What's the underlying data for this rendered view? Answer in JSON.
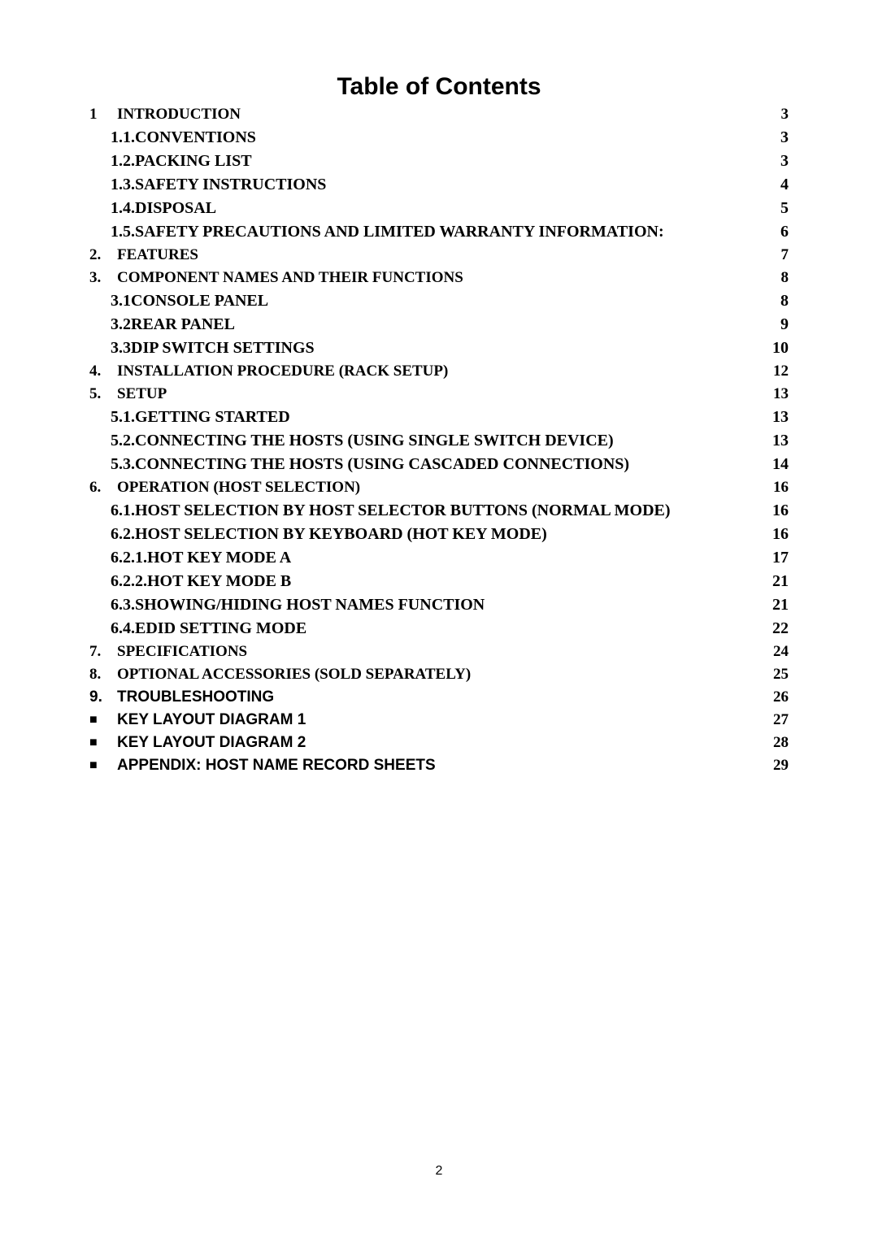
{
  "doc": {
    "title": "Table of Contents",
    "page_number": "2",
    "background_color": "#ffffff",
    "text_color": "#000000",
    "title_font": {
      "family": "Arial",
      "size_pt": 22,
      "weight": "bold"
    },
    "serif_font": {
      "family": "Times New Roman"
    },
    "sans_font": {
      "family": "Arial"
    }
  },
  "toc": [
    {
      "level": 1,
      "style": "serif",
      "num": "1",
      "label": "INTRODUCTION",
      "page": "3"
    },
    {
      "level": 2,
      "style": "serif",
      "num": "1.1.",
      "label": "CONVENTIONS",
      "page": "3"
    },
    {
      "level": 2,
      "style": "serif",
      "num": "1.2.",
      "label": "PACKING LIST",
      "page": "3"
    },
    {
      "level": 2,
      "style": "serif",
      "num": "1.3.",
      "label": "SAFETY INSTRUCTIONS",
      "page": "4"
    },
    {
      "level": 2,
      "style": "serif",
      "num": "1.4.",
      "label": "DISPOSAL",
      "page": "5"
    },
    {
      "level": 2,
      "style": "serif",
      "num": "1.5.",
      "label": "SAFETY PRECAUTIONS AND LIMITED WARRANTY INFORMATION:",
      "page": "6"
    },
    {
      "level": 1,
      "style": "serif",
      "num": "2.",
      "label": "FEATURES",
      "page": "7"
    },
    {
      "level": 1,
      "style": "serif",
      "num": "3.",
      "label": "COMPONENT NAMES AND THEIR FUNCTIONS",
      "page": "8"
    },
    {
      "level": 2,
      "style": "serif",
      "num": "3.1",
      "label": "CONSOLE PANEL",
      "page": "8"
    },
    {
      "level": 2,
      "style": "serif",
      "num": "3.2",
      "label": "REAR PANEL",
      "page": "9"
    },
    {
      "level": 2,
      "style": "serif",
      "num": "3.3",
      "label": "DIP SWITCH SETTINGS",
      "page": "10"
    },
    {
      "level": 1,
      "style": "serif",
      "num": "4.",
      "label": "INSTALLATION PROCEDURE (RACK SETUP)",
      "page": "12"
    },
    {
      "level": 1,
      "style": "serif",
      "num": "5.",
      "label": "SETUP",
      "page": "13"
    },
    {
      "level": 2,
      "style": "serif",
      "num": "5.1.",
      "label": "GETTING STARTED",
      "page": "13"
    },
    {
      "level": 2,
      "style": "serif",
      "num": "5.2.",
      "label": "CONNECTING THE HOSTS (USING SINGLE SWITCH DEVICE)",
      "page": "13"
    },
    {
      "level": 2,
      "style": "serif",
      "num": "5.3.",
      "label": "CONNECTING THE HOSTS (USING CASCADED CONNECTIONS)",
      "page": "14"
    },
    {
      "level": 1,
      "style": "serif",
      "num": "6.",
      "label": "OPERATION (HOST SELECTION)",
      "page": "16"
    },
    {
      "level": 2,
      "style": "serif",
      "num": "6.1.",
      "label": "HOST SELECTION BY HOST SELECTOR BUTTONS (NORMAL MODE)",
      "page": "16"
    },
    {
      "level": 2,
      "style": "serif",
      "num": "6.2.",
      "label": "HOST SELECTION BY KEYBOARD (HOT KEY MODE)",
      "page": "16"
    },
    {
      "level": 2,
      "style": "serif",
      "num": "6.2.1.",
      "label": "HOT KEY MODE A",
      "page": "17"
    },
    {
      "level": 2,
      "style": "serif",
      "num": "6.2.2.",
      "label": "HOT KEY MODE B",
      "page": "21"
    },
    {
      "level": 2,
      "style": "serif",
      "num": "6.3.",
      "label": "SHOWING/HIDING HOST NAMES FUNCTION",
      "page": "21"
    },
    {
      "level": 2,
      "style": "serif",
      "num": "6.4.",
      "label": "EDID SETTING MODE",
      "page": "22"
    },
    {
      "level": 1,
      "style": "serif",
      "num": "7.",
      "label": "SPECIFICATIONS",
      "page": "24"
    },
    {
      "level": 1,
      "style": "serif",
      "num": "8.",
      "label": "OPTIONAL ACCESSORIES (SOLD SEPARATELY)",
      "page": "25"
    },
    {
      "level": 1,
      "style": "sans",
      "num": "9.",
      "label": "TROUBLESHOOTING",
      "page": "26"
    },
    {
      "level": 1,
      "style": "sans",
      "bullet": true,
      "label": "KEY LAYOUT DIAGRAM 1",
      "page": "27"
    },
    {
      "level": 1,
      "style": "sans",
      "bullet": true,
      "label": "KEY LAYOUT DIAGRAM 2",
      "page": "28"
    },
    {
      "level": 1,
      "style": "sans",
      "bullet": true,
      "label": "APPENDIX: HOST NAME RECORD SHEETS",
      "page": "29"
    }
  ]
}
